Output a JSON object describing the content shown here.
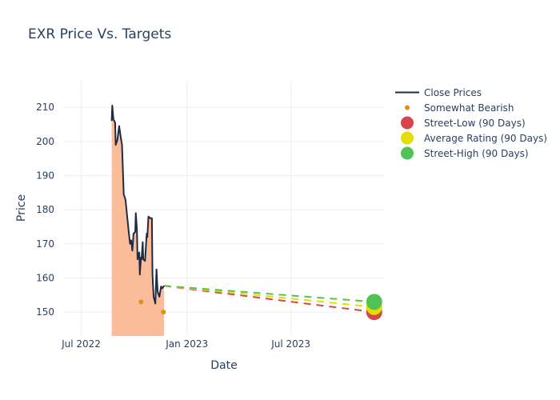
{
  "chart_data": {
    "type": "line",
    "title": "EXR Price Vs. Targets",
    "xlabel": "Date",
    "ylabel": "Price",
    "xlim": [
      "2022-06-01",
      "2023-12-10"
    ],
    "ylim": [
      143,
      218
    ],
    "grid": true,
    "legend_position": "right",
    "x_ticks": [
      {
        "date": "2022-07-01",
        "label": "Jul 2022"
      },
      {
        "date": "2023-01-01",
        "label": "Jan 2023"
      },
      {
        "date": "2023-07-01",
        "label": "Jul 2023"
      }
    ],
    "y_ticks": [
      150,
      160,
      170,
      180,
      190,
      200,
      210
    ],
    "series": [
      {
        "name": "Close Prices",
        "type": "line-area",
        "color": "#1f2a44",
        "fill": "#fbbd99",
        "points": [
          [
            "2022-08-23",
            206
          ],
          [
            "2022-08-24",
            210.5
          ],
          [
            "2022-08-26",
            206.5
          ],
          [
            "2022-08-29",
            205.5
          ],
          [
            "2022-08-30",
            199
          ],
          [
            "2022-09-02",
            200.5
          ],
          [
            "2022-09-05",
            204.5
          ],
          [
            "2022-09-08",
            201
          ],
          [
            "2022-09-10",
            199
          ],
          [
            "2022-09-13",
            184.5
          ],
          [
            "2022-09-16",
            183
          ],
          [
            "2022-09-19",
            178
          ],
          [
            "2022-09-22",
            173
          ],
          [
            "2022-09-24",
            170
          ],
          [
            "2022-09-26",
            171
          ],
          [
            "2022-09-28",
            168
          ],
          [
            "2022-09-30",
            173
          ],
          [
            "2022-10-03",
            173.5
          ],
          [
            "2022-10-04",
            179
          ],
          [
            "2022-10-06",
            174
          ],
          [
            "2022-10-07",
            165.5
          ],
          [
            "2022-10-10",
            167.5
          ],
          [
            "2022-10-11",
            161
          ],
          [
            "2022-10-13",
            166
          ],
          [
            "2022-10-14",
            165.5
          ],
          [
            "2022-10-16",
            170.5
          ],
          [
            "2022-10-17",
            165.5
          ],
          [
            "2022-10-20",
            165
          ],
          [
            "2022-10-23",
            173
          ],
          [
            "2022-10-24",
            172
          ],
          [
            "2022-10-26",
            178
          ],
          [
            "2022-10-29",
            177.5
          ],
          [
            "2022-11-01",
            177.5
          ],
          [
            "2022-11-02",
            161
          ],
          [
            "2022-11-04",
            154.5
          ],
          [
            "2022-11-07",
            152.5
          ],
          [
            "2022-11-09",
            162.5
          ],
          [
            "2022-11-11",
            156
          ],
          [
            "2022-11-14",
            154.5
          ],
          [
            "2022-11-17",
            157.5
          ],
          [
            "2022-11-19",
            157
          ],
          [
            "2022-11-22",
            157.7
          ]
        ]
      },
      {
        "name": "Somewhat Bearish",
        "type": "scatter",
        "color": "#e08e1b",
        "points": [
          [
            "2022-10-13",
            153
          ],
          [
            "2022-11-21",
            150
          ]
        ]
      },
      {
        "name": "Street-Low (90 Days)",
        "type": "target",
        "color": "#d6454b",
        "start": [
          "2022-11-22",
          157.7
        ],
        "end": [
          "2023-11-23",
          150
        ]
      },
      {
        "name": "Average Rating (90 Days)",
        "type": "target",
        "color": "#e3dd00",
        "start": [
          "2022-11-22",
          157.7
        ],
        "end": [
          "2023-11-23",
          151.5
        ]
      },
      {
        "name": "Street-High (90 Days)",
        "type": "target",
        "color": "#52c254",
        "start": [
          "2022-11-22",
          157.7
        ],
        "end": [
          "2023-11-23",
          153
        ]
      }
    ]
  }
}
